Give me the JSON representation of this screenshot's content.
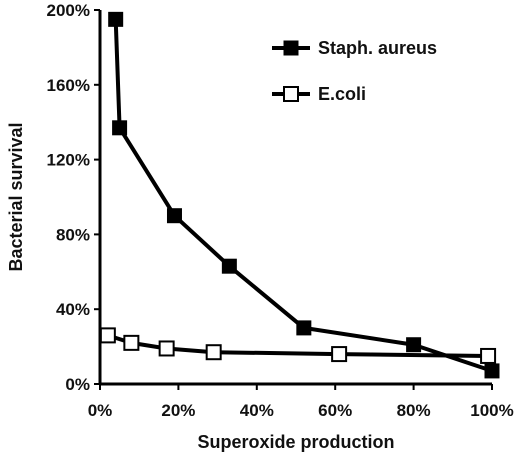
{
  "chart_data": {
    "type": "line",
    "xlabel": "Superoxide production",
    "ylabel": "Bacterial survival",
    "xlim": [
      0,
      100
    ],
    "ylim": [
      0,
      200
    ],
    "x_ticks": [
      "0%",
      "20%",
      "40%",
      "60%",
      "80%",
      "100%"
    ],
    "y_ticks": [
      "0%",
      "40%",
      "80%",
      "120%",
      "160%",
      "200%"
    ],
    "grid": false,
    "legend_position": "top-right",
    "series": [
      {
        "name": "Staph. aureus",
        "marker": "filled-square",
        "color": "#000000",
        "x": [
          4,
          5,
          19,
          33,
          52,
          80,
          100
        ],
        "y": [
          195,
          137,
          90,
          63,
          30,
          21,
          7
        ]
      },
      {
        "name": "E.coli",
        "marker": "open-square",
        "color": "#000000",
        "x": [
          2,
          8,
          17,
          29,
          61,
          99
        ],
        "y": [
          26,
          22,
          19,
          17,
          16,
          15
        ]
      }
    ]
  }
}
